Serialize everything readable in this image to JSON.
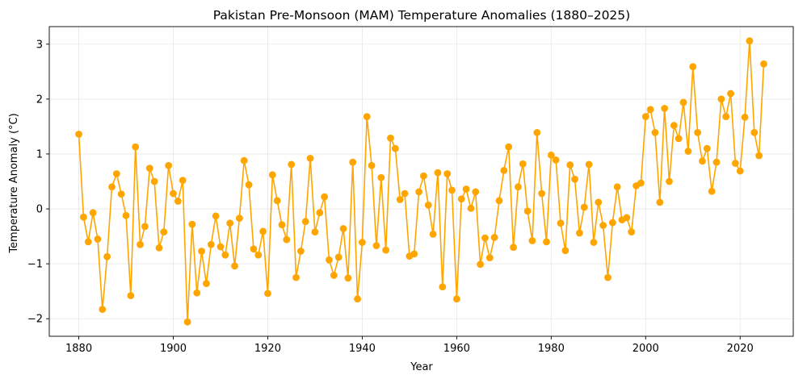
{
  "chart_data": {
    "type": "line",
    "title": "Pakistan Pre-Monsoon (MAM) Temperature Anomalies (1880–2025)",
    "xlabel": "Year",
    "ylabel": "Temperature Anomaly (°C)",
    "xlim": [
      1873.75,
      2031.25
    ],
    "ylim": [
      -2.32,
      3.32
    ],
    "x_ticks": [
      1880,
      1900,
      1920,
      1940,
      1960,
      1980,
      2000,
      2020
    ],
    "y_ticks": [
      -2,
      -1,
      0,
      1,
      2,
      3
    ],
    "grid": true,
    "legend": "none",
    "series": [
      {
        "color": "#FFA500",
        "marker": "circle",
        "x": [
          1880,
          1881,
          1882,
          1883,
          1884,
          1885,
          1886,
          1887,
          1888,
          1889,
          1890,
          1891,
          1892,
          1893,
          1894,
          1895,
          1896,
          1897,
          1898,
          1899,
          1900,
          1901,
          1902,
          1903,
          1904,
          1905,
          1906,
          1907,
          1908,
          1909,
          1910,
          1911,
          1912,
          1913,
          1914,
          1915,
          1916,
          1917,
          1918,
          1919,
          1920,
          1921,
          1922,
          1923,
          1924,
          1925,
          1926,
          1927,
          1928,
          1929,
          1930,
          1931,
          1932,
          1933,
          1934,
          1935,
          1936,
          1937,
          1938,
          1939,
          1940,
          1941,
          1942,
          1943,
          1944,
          1945,
          1946,
          1947,
          1948,
          1949,
          1950,
          1951,
          1952,
          1953,
          1954,
          1955,
          1956,
          1957,
          1958,
          1959,
          1960,
          1961,
          1962,
          1963,
          1964,
          1965,
          1966,
          1967,
          1968,
          1969,
          1970,
          1971,
          1972,
          1973,
          1974,
          1975,
          1976,
          1977,
          1978,
          1979,
          1980,
          1981,
          1982,
          1983,
          1984,
          1985,
          1986,
          1987,
          1988,
          1989,
          1990,
          1991,
          1992,
          1993,
          1994,
          1995,
          1996,
          1997,
          1998,
          1999,
          2000,
          2001,
          2002,
          2003,
          2004,
          2005,
          2006,
          2007,
          2008,
          2009,
          2010,
          2011,
          2012,
          2013,
          2014,
          2015,
          2016,
          2017,
          2018,
          2019,
          2020,
          2021,
          2022,
          2023,
          2024,
          2025
        ],
        "y": [
          1.36,
          -0.15,
          -0.6,
          -0.07,
          -0.55,
          -1.83,
          -0.87,
          0.4,
          0.64,
          0.27,
          -0.12,
          -1.58,
          1.13,
          -0.65,
          -0.32,
          0.74,
          0.5,
          -0.71,
          -0.42,
          0.79,
          0.28,
          0.14,
          0.52,
          -2.06,
          -0.28,
          -1.53,
          -0.77,
          -1.36,
          -0.65,
          -0.13,
          -0.69,
          -0.84,
          -0.26,
          -1.04,
          -0.17,
          0.88,
          0.44,
          -0.73,
          -0.84,
          -0.41,
          -1.54,
          0.62,
          0.15,
          -0.29,
          -0.56,
          0.81,
          -1.25,
          -0.77,
          -0.23,
          0.92,
          -0.42,
          -0.07,
          0.22,
          -0.93,
          -1.21,
          -0.88,
          -0.36,
          -1.26,
          0.85,
          -1.64,
          -0.61,
          1.68,
          0.79,
          -0.67,
          0.57,
          -0.75,
          1.29,
          1.1,
          0.17,
          0.28,
          -0.86,
          -0.82,
          0.31,
          0.6,
          0.07,
          -0.46,
          0.66,
          -1.42,
          0.64,
          0.34,
          -1.64,
          0.18,
          0.36,
          0.01,
          0.31,
          -1.01,
          -0.53,
          -0.89,
          -0.52,
          0.15,
          0.7,
          1.13,
          -0.7,
          0.4,
          0.82,
          -0.04,
          -0.58,
          1.39,
          0.28,
          -0.6,
          0.98,
          0.89,
          -0.26,
          -0.76,
          0.8,
          0.54,
          -0.44,
          0.03,
          0.81,
          -0.61,
          0.12,
          -0.3,
          -1.25,
          -0.25,
          0.4,
          -0.2,
          -0.16,
          -0.42,
          0.42,
          0.47,
          1.68,
          1.81,
          1.39,
          0.12,
          1.83,
          0.5,
          1.52,
          1.28,
          1.94,
          1.05,
          2.59,
          1.39,
          0.87,
          1.1,
          0.32,
          0.85,
          2.0,
          1.68,
          2.1,
          0.83,
          0.69,
          1.67,
          3.06,
          1.39,
          0.97,
          2.64
        ]
      }
    ]
  }
}
